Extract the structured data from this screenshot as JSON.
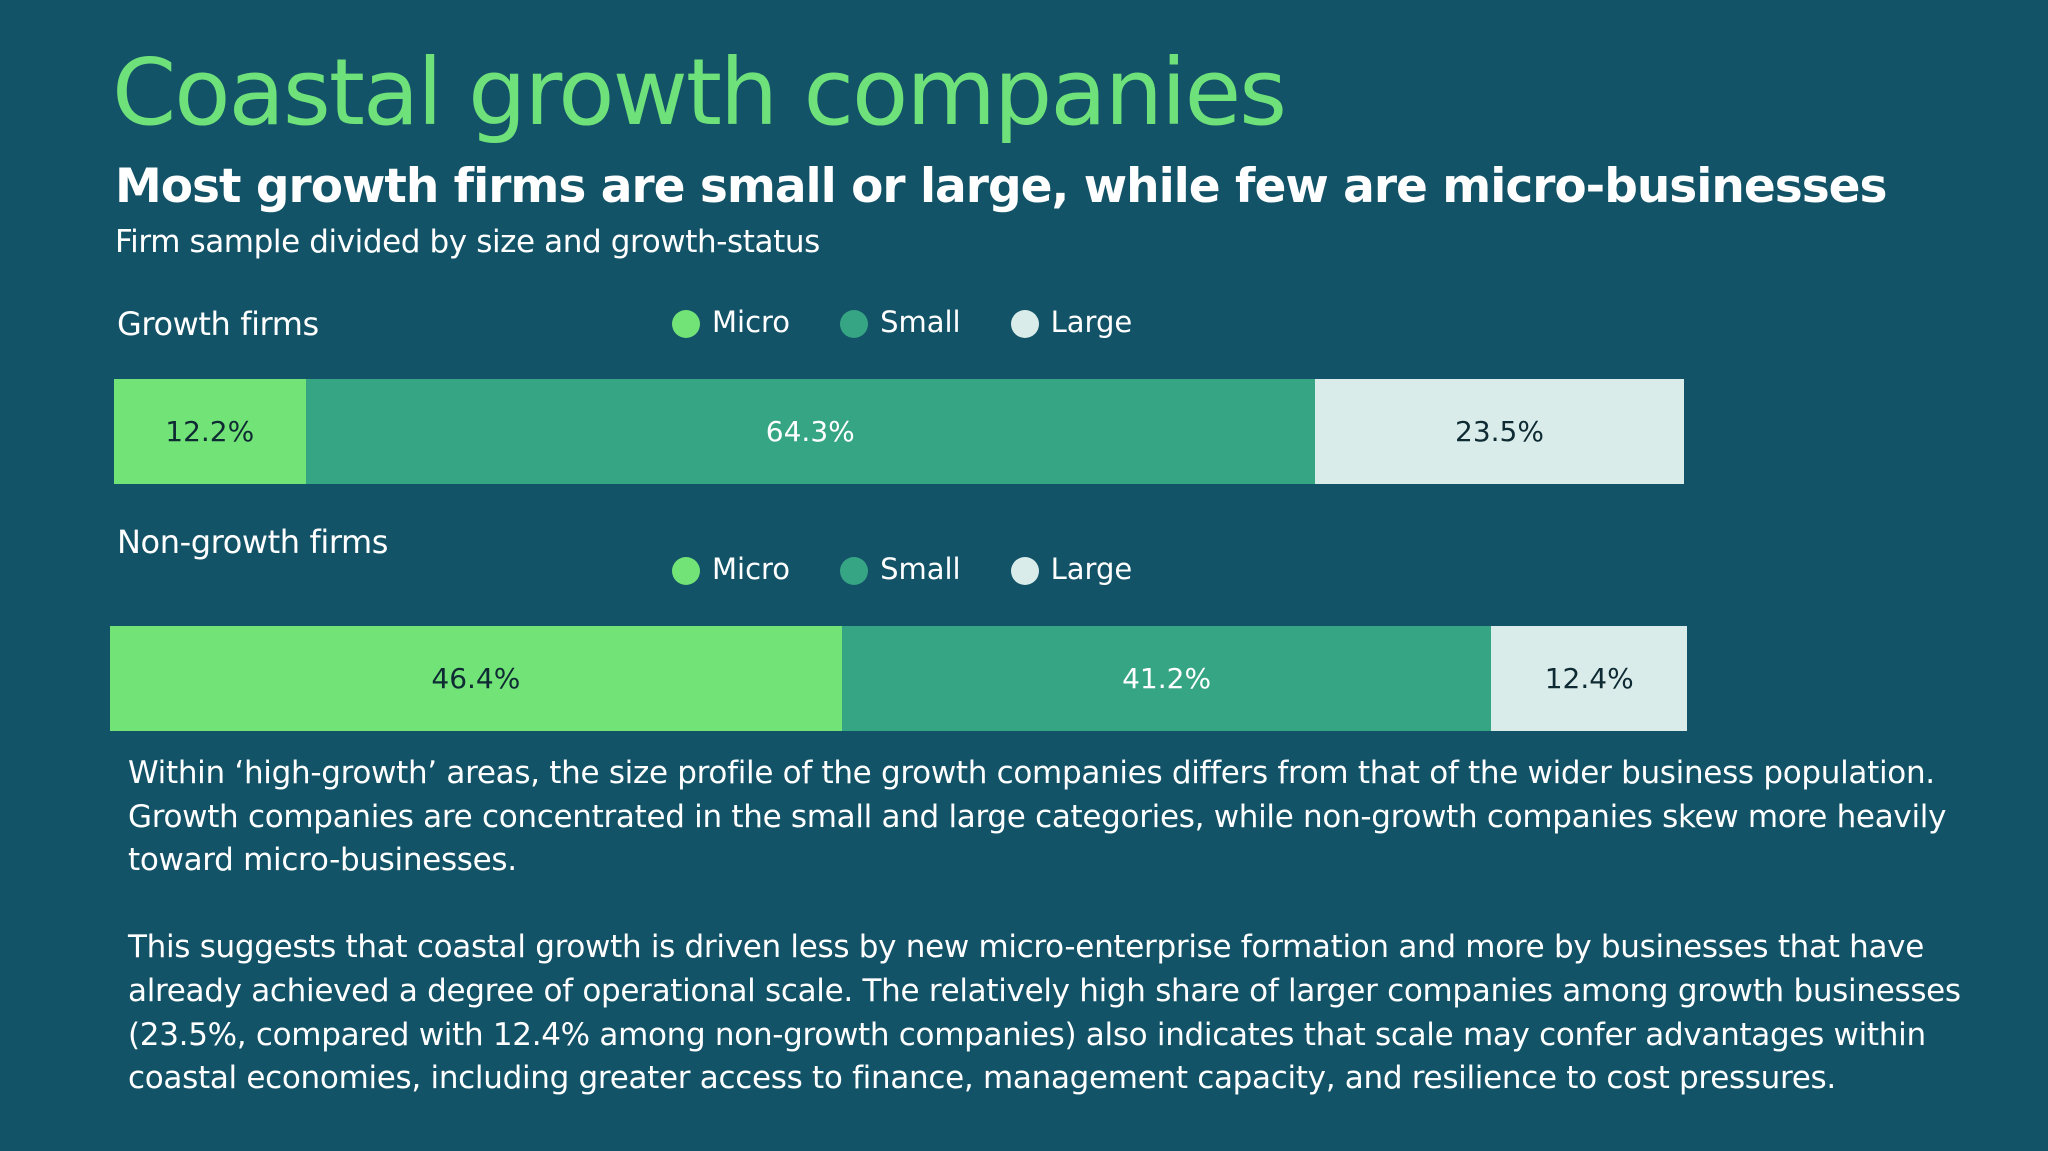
{
  "title": "Coastal growth companies",
  "subtitle": "Most growth firms are small or large, while few are micro-businesses",
  "caption": "Firm sample divided by size and growth-status",
  "colors": {
    "background": "#135367",
    "title": "#6FE17B",
    "micro": "#72E377",
    "small": "#36A584",
    "large": "#D9ECEA",
    "dark_text": "#0E2A33",
    "light_text": "#FFFFFF"
  },
  "legend": [
    "Micro",
    "Small",
    "Large"
  ],
  "chart_data": {
    "type": "bar",
    "orientation": "horizontal",
    "stacked": "100%",
    "categories": [
      "Growth firms",
      "Non-growth firms"
    ],
    "series": [
      {
        "name": "Micro",
        "values": [
          12.2,
          46.4
        ],
        "labels": [
          "12.2%",
          "46.4%"
        ]
      },
      {
        "name": "Small",
        "values": [
          64.3,
          41.2
        ],
        "labels": [
          "64.3%",
          "41.2%"
        ]
      },
      {
        "name": "Large",
        "values": [
          23.5,
          12.4
        ],
        "labels": [
          "23.5%",
          "12.4%"
        ]
      }
    ],
    "legend_position": "above each bar",
    "xlim": [
      0,
      100
    ]
  },
  "body": {
    "paragraph1": "Within ‘high-growth’ areas, the size profile of the growth companies differs from that of the wider business population. Growth companies are concentrated in the small and large categories, while non-growth companies skew more heavily toward micro-businesses.",
    "paragraph2": "This suggests that coastal growth is driven less by new micro-enterprise formation and more by businesses that have already achieved a degree of operational scale. The relatively high share of larger companies among growth businesses (23.5%, compared with 12.4% among non-growth companies) also indicates that scale may confer advantages within coastal economies, including greater access to finance, management capacity, and resilience to cost pressures."
  }
}
